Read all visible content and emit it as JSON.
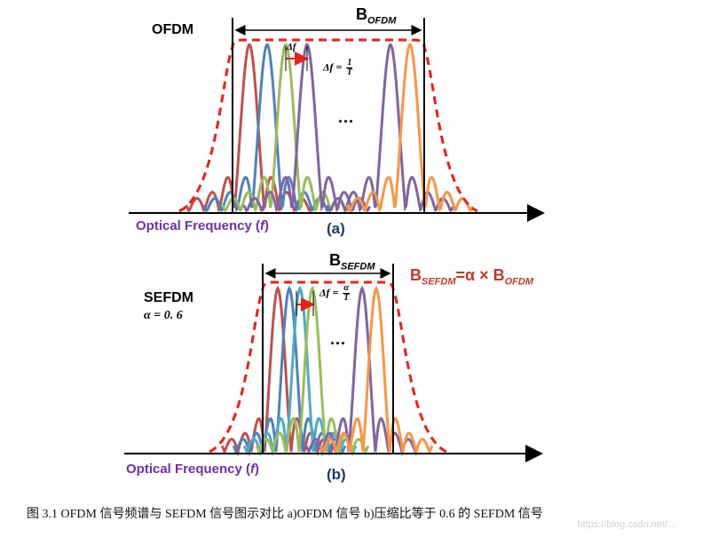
{
  "panel_a": {
    "label_left": "OFDM",
    "bandwidth_label": "B",
    "bandwidth_sub": "OFDM",
    "spacing_symbol": "Δf",
    "spacing_formula_lhs": "Δf =",
    "spacing_num": "1",
    "spacing_den": "T",
    "ellipsis": "...",
    "xaxis_label": "Optical Frequency (",
    "xaxis_var": "f",
    "xaxis_close": ")",
    "panel_id": "(a)"
  },
  "panel_b": {
    "label_left": "SEFDM",
    "alpha_text": "α = 0. 6",
    "bandwidth_label": "B",
    "bandwidth_sub": "SEFDM",
    "relation_b1": "B",
    "relation_sub1": "SEFDM",
    "relation_mid": "=α × B",
    "relation_sub2": "OFDM",
    "spacing_formula_lhs": "Δf =",
    "spacing_num": "α",
    "spacing_den": "T",
    "ellipsis": "...",
    "xaxis_label": "Optical Frequency (",
    "xaxis_var": "f",
    "xaxis_close": ")",
    "panel_id": "(b)"
  },
  "caption": "图 3.1 OFDM 信号频谱与 SEFDM 信号图示对比 a)OFDM 信号 b)压缩比等于 0.6 的 SEFDM 信号",
  "watermark": "https://blog.csdn.net/…",
  "colors": {
    "envelope": "#e8201c",
    "bracket": "#000000",
    "arrow": "#e8201c",
    "relation": "#c0392b",
    "axis_label": "#7030a0",
    "subcarriers": [
      "#c0504d",
      "#4f81bd",
      "#9bbb59",
      "#8064a2",
      "#4bacc6",
      "#f79646",
      "#8064a2",
      "#f79646"
    ]
  }
}
